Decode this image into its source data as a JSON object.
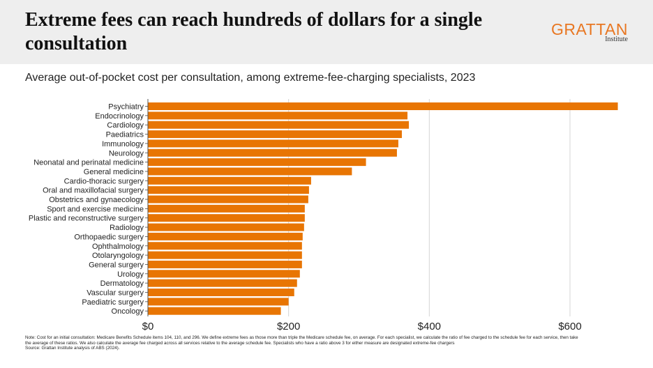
{
  "header": {
    "title": "Extreme fees can reach hundreds of dollars for a single consultation",
    "logo_main": "GRATTAN",
    "logo_sub": "Institute"
  },
  "subtitle": "Average out-of-pocket cost per consultation, among extreme-fee-charging specialists, 2023",
  "chart_data": {
    "type": "bar",
    "orientation": "horizontal",
    "title": "Average out-of-pocket cost per consultation, among extreme-fee-charging specialists, 2023",
    "categories": [
      "Psychiatry",
      "Endocrinology",
      "Cardiology",
      "Paediatrics",
      "Immunology",
      "Neurology",
      "Neonatal and perinatal medicine",
      "General medicine",
      "Cardio-thoracic surgery",
      "Oral and maxillofacial surgery",
      "Obstetrics and gynaecology",
      "Sport and exercise medicine",
      "Plastic and reconstructive surgery",
      "Radiology",
      "Orthopaedic surgery",
      "Ophthalmology",
      "Otolaryngology",
      "General surgery",
      "Urology",
      "Dermatology",
      "Vascular surgery",
      "Paediatric surgery",
      "Oncology"
    ],
    "values": [
      668,
      369,
      371,
      361,
      356,
      354,
      310,
      290,
      232,
      229,
      228,
      223,
      223,
      222,
      220,
      219,
      219,
      219,
      216,
      212,
      208,
      200,
      189
    ],
    "xlim": [
      0,
      670
    ],
    "xticks": [
      "$0",
      "$200",
      "$400",
      "$600"
    ],
    "xtick_values": [
      0,
      200,
      400,
      600
    ],
    "grid": true,
    "bar_color": "#e87503"
  },
  "notes": {
    "note": "Note: Cost for an initial consultation: Medicare Benefits Schedule items 104, 110, and 296. We define extreme fees as those more than triple the Medicare schedule fee, on average. For each specialist, we calculate the ratio of fee charged to the schedule fee for each service, then take the average of these ratios. We also calculate the average fee charged across all services relative to the average schedule fee. Specialists who have a ratio above 3 for either measure are designated extreme-fee chargers",
    "source": "Source: Grattan Institute analysis of ABS (2024)."
  }
}
